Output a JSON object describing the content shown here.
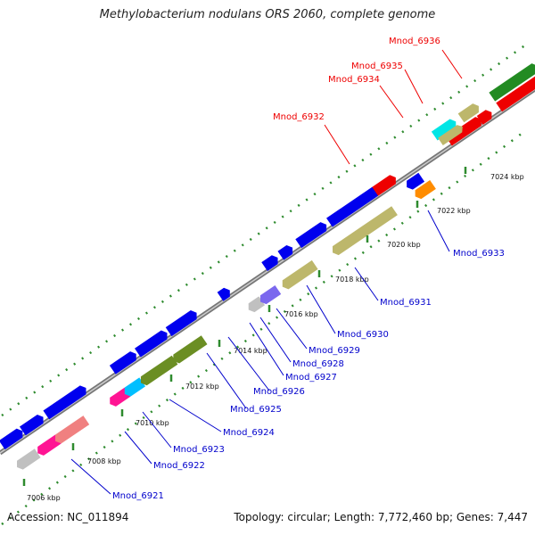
{
  "title": "Methylobacterium nodulans ORS 2060, complete genome",
  "footer": {
    "accession": "Accession: NC_011894",
    "summary": "Topology: circular; Length: 7,772,460 bp; Genes: 7,447"
  },
  "ticks": [
    "7006 kbp",
    "7008 kbp",
    "7010 kbp",
    "7012 kbp",
    "7014 kbp",
    "7016 kbp",
    "7018 kbp",
    "7020 kbp",
    "7022 kbp",
    "7024 kbp"
  ],
  "gene_labels": [
    "Mnod_6921",
    "Mnod_6922",
    "Mnod_6923",
    "Mnod_6924",
    "Mnod_6925",
    "Mnod_6926",
    "Mnod_6927",
    "Mnod_6928",
    "Mnod_6929",
    "Mnod_6930",
    "Mnod_6931",
    "Mnod_6932",
    "Mnod_6933",
    "Mnod_6934",
    "Mnod_6935",
    "Mnod_6936"
  ],
  "colors": {
    "backbone": "#888888",
    "dots": "#2e8b2e",
    "blue_gene": "#0000ee",
    "highlight_label": "#ee0000",
    "blue_label": "#0000cc"
  }
}
